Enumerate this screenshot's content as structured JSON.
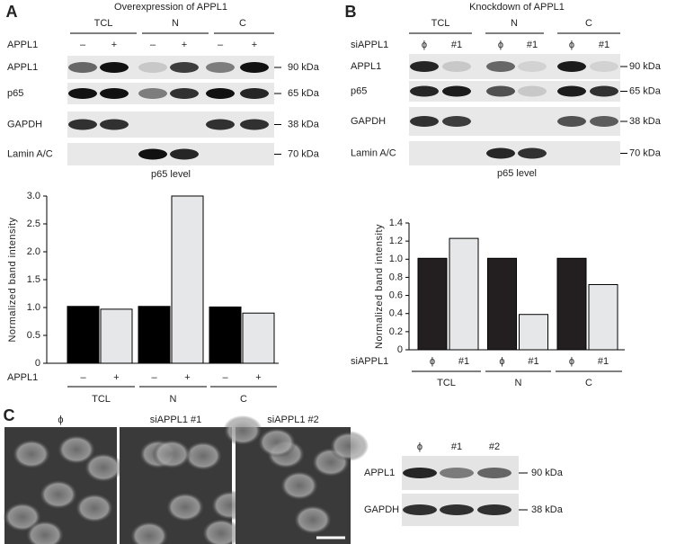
{
  "panels": {
    "A": {
      "label": "A",
      "title": "Overexpression of APPL1",
      "blot": {
        "groups": [
          "TCL",
          "N",
          "C"
        ],
        "treatment": "APPL1",
        "conditions": [
          "–",
          "+",
          "–",
          "+",
          "–",
          "+"
        ],
        "rows": [
          {
            "name": "APPL1",
            "marker": "90 kDa"
          },
          {
            "name": "p65",
            "marker": "65 kDa"
          },
          {
            "name": "GAPDH",
            "marker": "38 kDa"
          },
          {
            "name": "Lamin A/C",
            "marker": "70 kDa"
          }
        ]
      }
    },
    "B": {
      "label": "B",
      "title": "Knockdown of APPL1",
      "blot": {
        "groups": [
          "TCL",
          "N",
          "C"
        ],
        "treatment": "siAPPL1",
        "conditions": [
          "ϕ",
          "#1",
          "ϕ",
          "#1",
          "ϕ",
          "#1"
        ],
        "rows": [
          {
            "name": "APPL1",
            "marker": "90 kDa"
          },
          {
            "name": "p65",
            "marker": "65 kDa"
          },
          {
            "name": "GAPDH",
            "marker": "38 kDa"
          },
          {
            "name": "Lamin A/C",
            "marker": "70 kDa"
          }
        ]
      }
    },
    "C": {
      "label": "C",
      "images": [
        "ϕ",
        "siAPPL1 #1",
        "siAPPL1 #2"
      ],
      "blot": {
        "lanes": [
          "ϕ",
          "#1",
          "#2"
        ],
        "rows": [
          {
            "name": "APPL1",
            "marker": "90 kDa"
          },
          {
            "name": "GAPDH",
            "marker": "38 kDa"
          }
        ]
      }
    }
  },
  "chart_data": [
    {
      "type": "bar",
      "title": "p65 level",
      "ylabel": "Normalized band intensity",
      "xlabel": "APPL1",
      "categories": [
        "TCL",
        "N",
        "C"
      ],
      "series": [
        {
          "name": "–",
          "color": "#000000",
          "values": [
            1.02,
            1.02,
            1.01
          ]
        },
        {
          "name": "+",
          "color": "#e6e7e9",
          "values": [
            0.97,
            3.0,
            0.9
          ]
        }
      ],
      "ylim": [
        0,
        3
      ],
      "yticks": [
        0,
        0.5,
        {
          "value": 1,
          "label": "1.0"
        },
        1.5,
        {
          "value": 2,
          "label": "2.0"
        },
        2.5,
        {
          "value": 3,
          "label": "3.0"
        }
      ]
    },
    {
      "type": "bar",
      "title": "p65 level",
      "ylabel": "Normalized band intensity",
      "xlabel": "siAPPL1",
      "categories": [
        "TCL",
        "N",
        "C"
      ],
      "series": [
        {
          "name": "ϕ",
          "color": "#231f20",
          "values": [
            1.01,
            1.01,
            1.01
          ]
        },
        {
          "name": "#1",
          "color": "#e6e7e9",
          "values": [
            1.23,
            0.39,
            0.72
          ]
        }
      ],
      "ylim": [
        0,
        1.4
      ],
      "yticks": [
        0,
        0.2,
        0.4,
        0.6,
        0.8,
        {
          "value": 1,
          "label": "1.0"
        },
        1.2,
        1.4
      ]
    }
  ]
}
